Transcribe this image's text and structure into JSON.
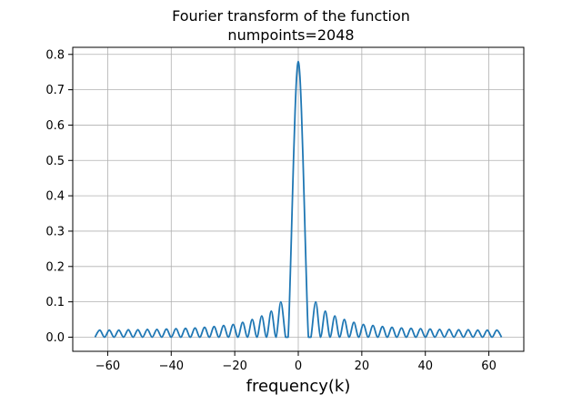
{
  "chart_data": {
    "type": "line",
    "title_lines": [
      "Fourier transform of the function",
      "numpoints=2048"
    ],
    "xlabel": "frequency(k)",
    "ylabel": "",
    "xlim": [
      -71,
      71
    ],
    "ylim": [
      -0.04,
      0.82
    ],
    "xticks": [
      -60,
      -40,
      -20,
      0,
      20,
      40,
      60
    ],
    "xtick_labels": [
      "−60",
      "−40",
      "−20",
      "0",
      "20",
      "40",
      "60"
    ],
    "yticks": [
      0.0,
      0.1,
      0.2,
      0.3,
      0.4,
      0.5,
      0.6,
      0.7,
      0.8
    ],
    "ytick_labels": [
      "0.0",
      "0.1",
      "0.2",
      "0.3",
      "0.4",
      "0.5",
      "0.6",
      "0.7",
      "0.8"
    ],
    "grid": true,
    "series": [
      {
        "color": "#1f77b4",
        "description": "absolute value of a sinc-shaped transform: main lobe peak 0.78 at k=0, first zeros near k=±3.2, side lobes decaying to ~0.02 at |k|=64",
        "x": [
          -64,
          -62.5,
          -61,
          -59.5,
          -58,
          -56.5,
          -55,
          -53.5,
          -52,
          -50.5,
          -49,
          -47.5,
          -46,
          -44.5,
          -43,
          -41.5,
          -40,
          -38.5,
          -37,
          -35.5,
          -34,
          -32.5,
          -31,
          -29.5,
          -28,
          -26.5,
          -25,
          -23.5,
          -22,
          -20.5,
          -19,
          -17.5,
          -16,
          -14.5,
          -13,
          -11.5,
          -10,
          -8.5,
          -7,
          -5.5,
          -4,
          -3.2,
          -2.5,
          -2,
          -1.5,
          -1,
          -0.5,
          0,
          0.5,
          1,
          1.5,
          2,
          2.5,
          3.2,
          4,
          5.5,
          7,
          8.5,
          10,
          11.5,
          13,
          14.5,
          16,
          17.5,
          19,
          20.5,
          22,
          23.5,
          25,
          26.5,
          28,
          29.5,
          31,
          32.5,
          34,
          35.5,
          37,
          38.5,
          40,
          41.5,
          43,
          44.5,
          46,
          47.5,
          49,
          50.5,
          52,
          53.5,
          55,
          56.5,
          58,
          59.5,
          61,
          62.5,
          64
        ],
        "y": [
          0.0,
          0.02,
          0.0,
          0.02,
          0.0,
          0.02,
          0.0,
          0.021,
          0.0,
          0.021,
          0.0,
          0.022,
          0.0,
          0.022,
          0.0,
          0.023,
          0.0,
          0.024,
          0.0,
          0.025,
          0.0,
          0.026,
          0.0,
          0.028,
          0.0,
          0.03,
          0.0,
          0.033,
          0.0,
          0.036,
          0.0,
          0.042,
          0.0,
          0.05,
          0.0,
          0.06,
          0.0,
          0.074,
          0.0,
          0.1,
          0.0,
          0.0,
          0.18,
          0.34,
          0.5,
          0.64,
          0.74,
          0.78,
          0.74,
          0.64,
          0.5,
          0.34,
          0.18,
          0.0,
          0.0,
          0.1,
          0.0,
          0.074,
          0.0,
          0.06,
          0.0,
          0.05,
          0.0,
          0.042,
          0.0,
          0.036,
          0.0,
          0.033,
          0.0,
          0.03,
          0.0,
          0.028,
          0.0,
          0.026,
          0.0,
          0.025,
          0.0,
          0.024,
          0.0,
          0.023,
          0.0,
          0.022,
          0.0,
          0.022,
          0.0,
          0.021,
          0.0,
          0.021,
          0.0,
          0.02,
          0.0,
          0.02,
          0.0,
          0.02,
          0.0
        ]
      }
    ]
  }
}
